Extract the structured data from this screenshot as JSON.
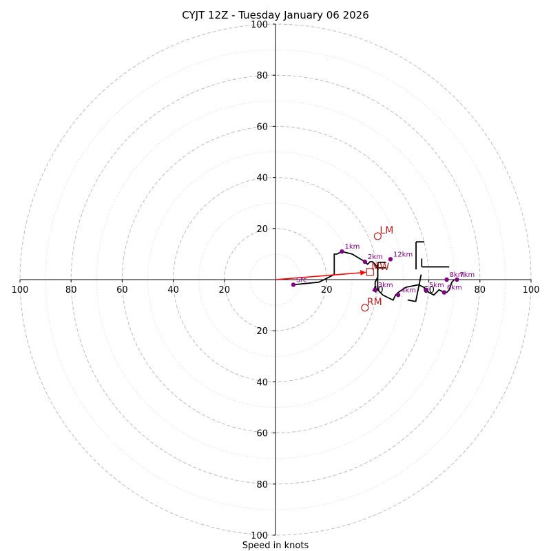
{
  "chart_data": {
    "type": "line",
    "title": "CYJT 12Z - Tuesday January 06 2026",
    "xlabel": "Speed in knots",
    "ylabel": "",
    "xlim": [
      -100,
      100
    ],
    "ylim": [
      -100,
      100
    ],
    "rings_major": [
      20,
      40,
      60,
      80,
      100
    ],
    "rings_minor": [
      10,
      30,
      50,
      70,
      90
    ],
    "tick_values": [
      100,
      80,
      60,
      40,
      20
    ],
    "tick_labels": [
      "100",
      "80",
      "60",
      "40",
      "20"
    ],
    "colors": {
      "trace": "#000000",
      "markers": "#800080",
      "motion": "#b22222",
      "mean_wind_arrow": "#ff0000",
      "grid": "#bbbbbb"
    },
    "trace": {
      "u": [
        7,
        17,
        21,
        23,
        23,
        24,
        26,
        30,
        35,
        36,
        37,
        38,
        39,
        40,
        40,
        39,
        39,
        40,
        41,
        42,
        44,
        46,
        47,
        48,
        51,
        56,
        58,
        59,
        60,
        62,
        64,
        66,
        67,
        68,
        69,
        70,
        70
      ],
      "v": [
        -2,
        -1,
        1,
        2,
        10,
        10,
        11,
        10,
        7,
        6,
        7,
        7,
        6,
        4,
        1,
        -1,
        -4,
        -4,
        -5,
        -6,
        -7,
        -8,
        -6,
        -5,
        -3,
        -2,
        -3,
        -4,
        -5,
        -6,
        -4,
        -5,
        -5,
        -4,
        -1,
        0,
        0
      ]
    },
    "height_markers": [
      {
        "label": "Sfc",
        "u": 7,
        "v": -2
      },
      {
        "label": "1km",
        "u": 26,
        "v": 11
      },
      {
        "label": "2km",
        "u": 35,
        "v": 7
      },
      {
        "label": "3km",
        "u": 39,
        "v": -4
      },
      {
        "label": "4km",
        "u": 48,
        "v": -6
      },
      {
        "label": "5km",
        "u": 59,
        "v": -4
      },
      {
        "label": "6km",
        "u": 66,
        "v": -5
      },
      {
        "label": "7km",
        "u": 71,
        "v": 0
      },
      {
        "label": "8km",
        "u": 67,
        "v": 0
      },
      {
        "label": "12km",
        "u": 45,
        "v": 8
      }
    ],
    "wind_barbs": [
      {
        "u": 40,
        "v": -4,
        "dir_u": 0,
        "dir_v": 1,
        "n": 2
      },
      {
        "u": 55,
        "v": 4,
        "dir_u": 0,
        "dir_v": 1,
        "n": 1
      },
      {
        "u": 57,
        "v": 2,
        "dir_u": -0.2,
        "dir_v": -1,
        "n": 1
      },
      {
        "u": 68,
        "v": 5,
        "dir_u": -1,
        "dir_v": 0,
        "n": 1
      }
    ],
    "storm_motions": [
      {
        "label": "LM",
        "u": 40,
        "v": 17,
        "shape": "circle"
      },
      {
        "label": "RM",
        "u": 35,
        "v": -11,
        "shape": "circle"
      },
      {
        "label": "MW",
        "u": 37,
        "v": 3,
        "shape": "square"
      }
    ],
    "mean_wind_arrow": {
      "from_u": 0,
      "from_v": 0,
      "to_u": 37,
      "to_v": 3
    }
  }
}
